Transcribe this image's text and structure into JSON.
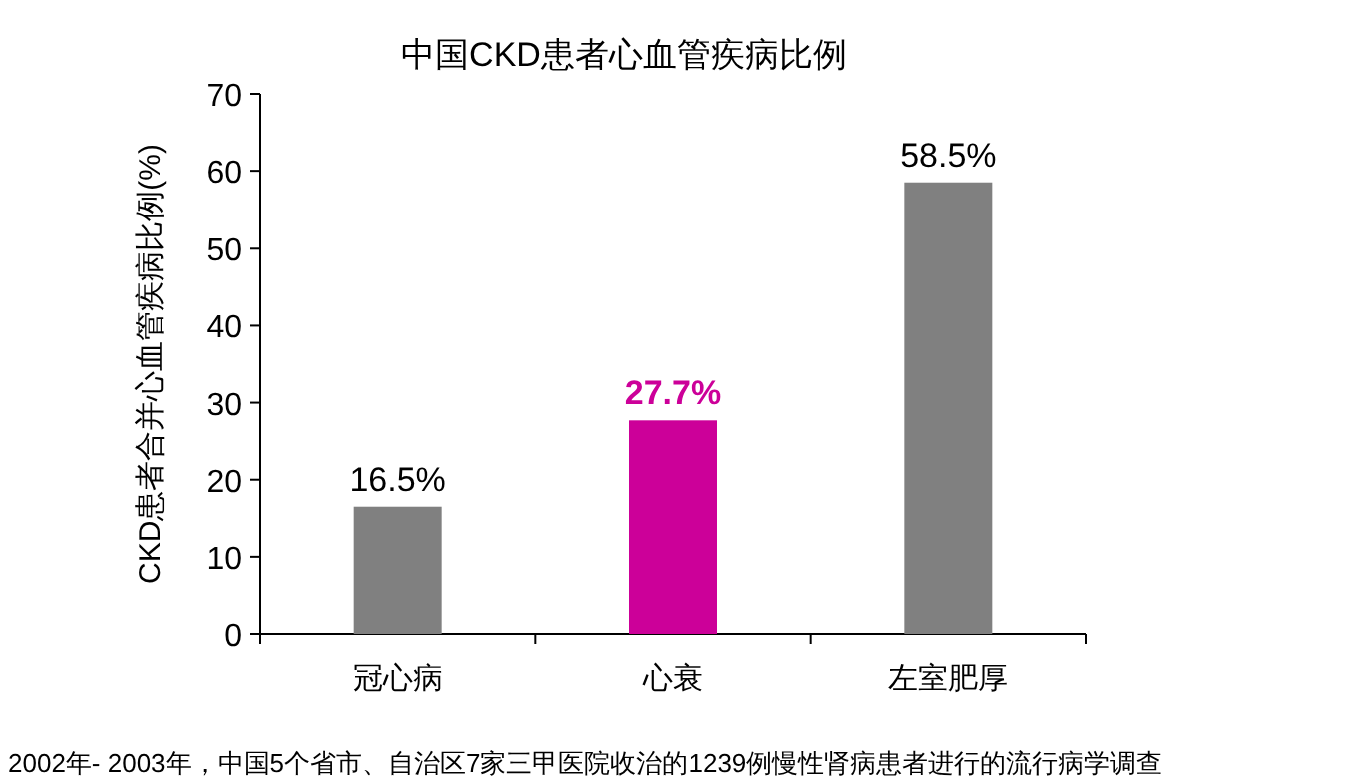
{
  "chart_data": {
    "type": "bar",
    "title": "中国CKD患者心血管疾病比例",
    "ylabel": "CKD患者合并心血管疾病比例(%)",
    "categories": [
      "冠心病",
      "心衰",
      "左室肥厚"
    ],
    "values": [
      16.5,
      27.7,
      58.5
    ],
    "colors": [
      "#808080",
      "#cc0099",
      "#808080"
    ],
    "value_labels": [
      "16.5%",
      "**27.7%**",
      "58.5%"
    ],
    "ylim": [
      0,
      70
    ],
    "yticks": [
      0,
      10,
      20,
      30,
      40,
      50,
      60,
      70
    ],
    "grid": false,
    "annotations": [
      "2002年- 2003年，中国5个省市、自治区7家三甲医院收治的1239例慢性肾病患者进行的流行病学调查"
    ]
  }
}
